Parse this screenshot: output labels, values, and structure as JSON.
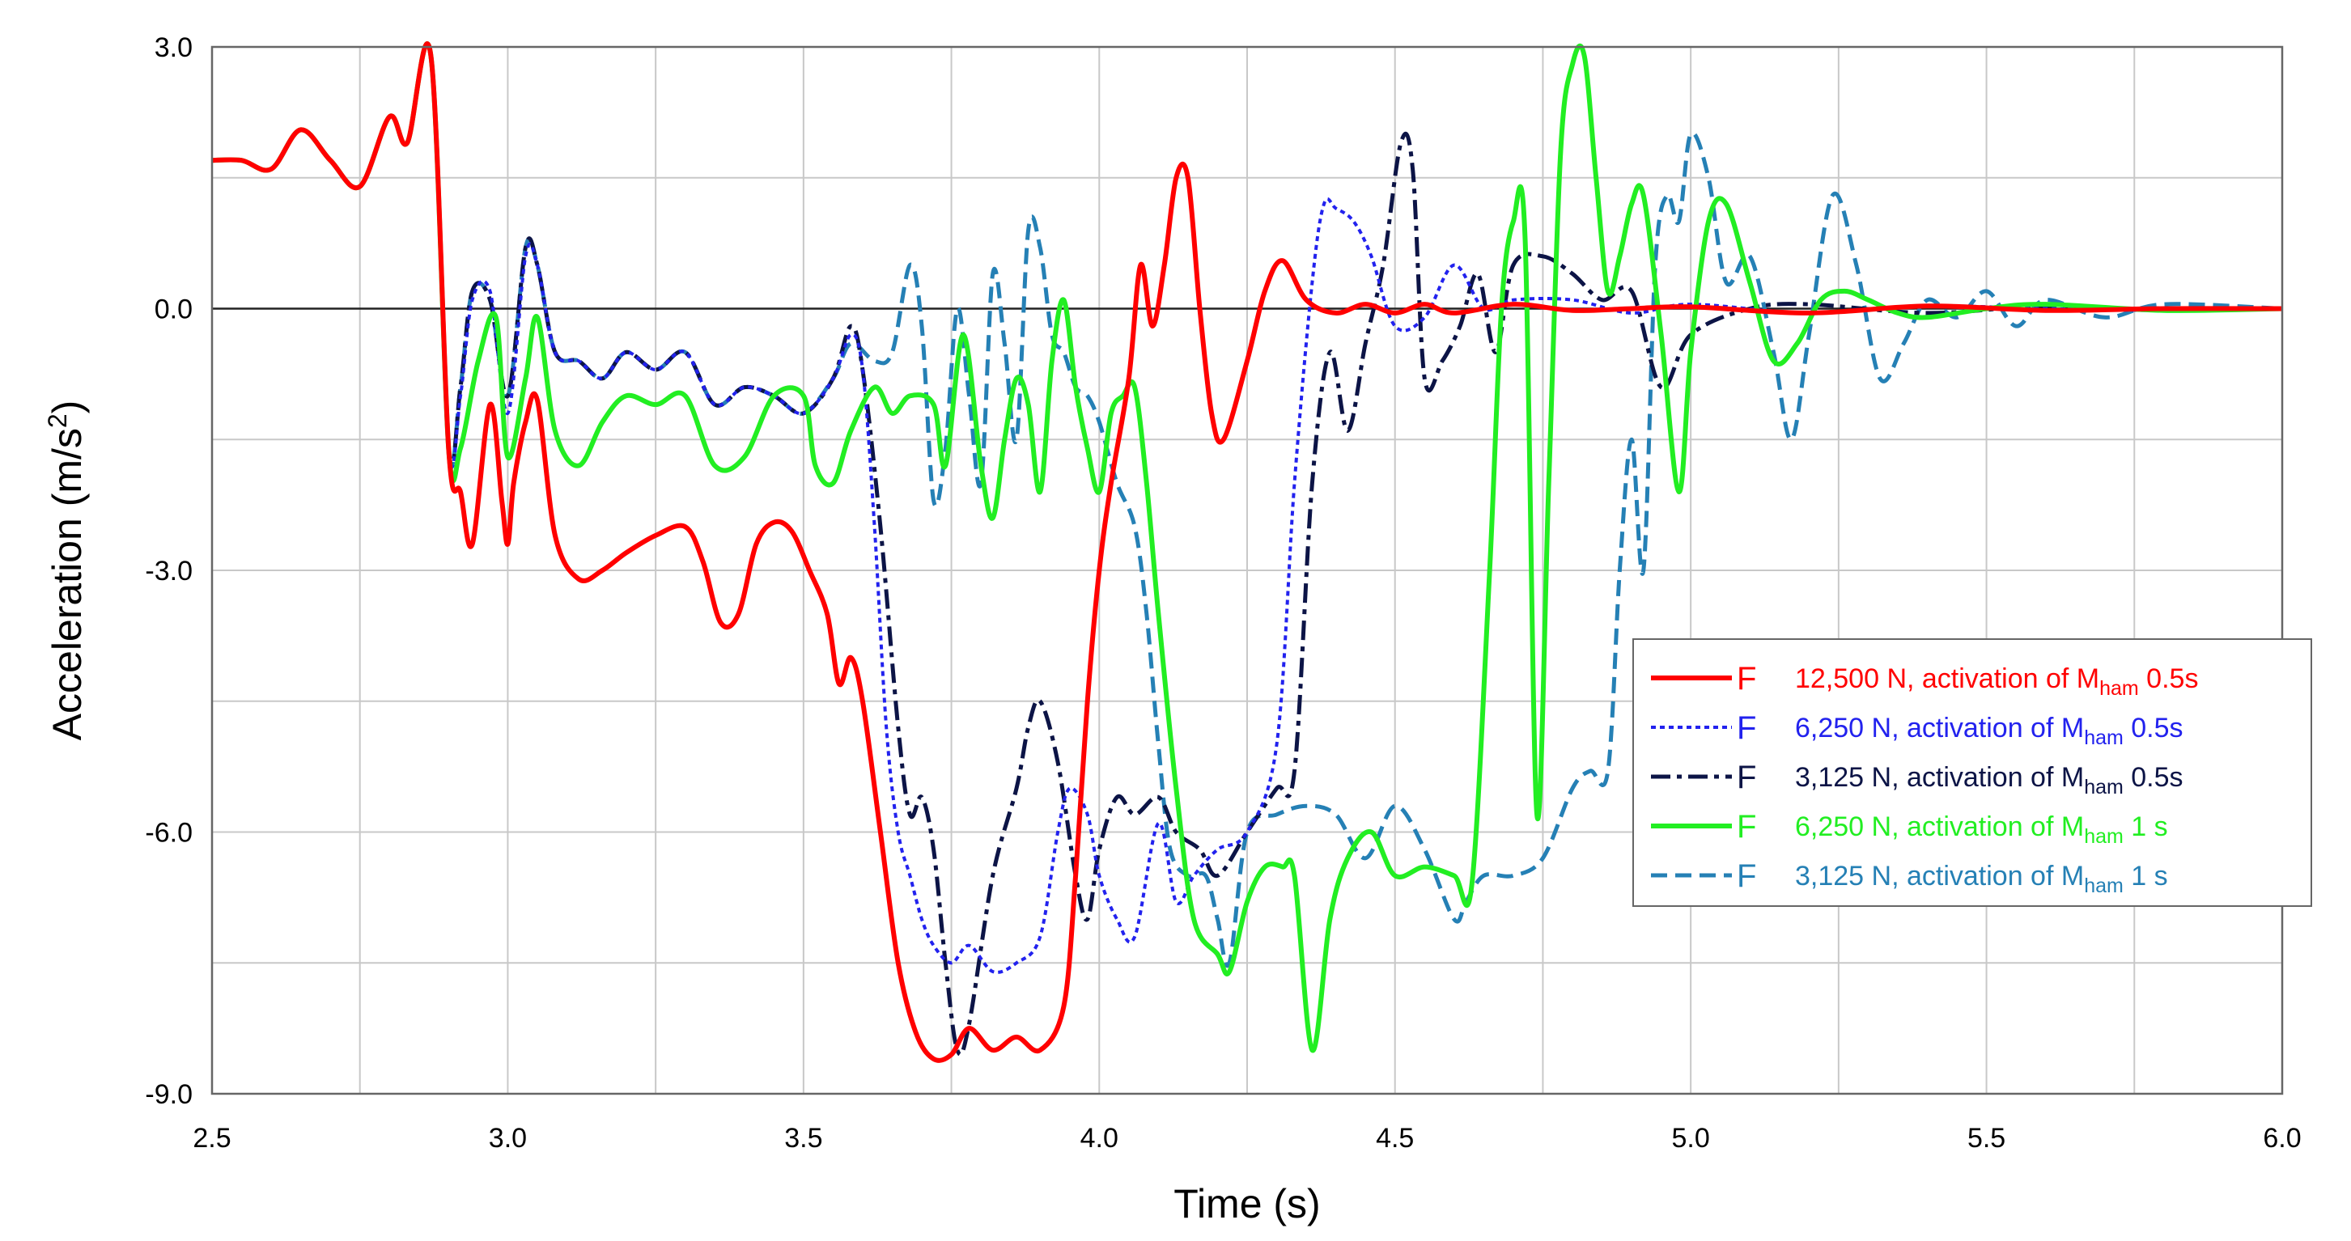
{
  "chart_data": {
    "type": "line",
    "title": "",
    "xlabel": "Time (s)",
    "ylabel_main": "Acceleration (m/s",
    "ylabel_sup": "2",
    "ylabel_close": ")",
    "xlim": [
      2.5,
      6.0
    ],
    "ylim": [
      -9.0,
      3.0
    ],
    "x_ticks": [
      2.5,
      3.0,
      3.5,
      4.0,
      4.5,
      5.0,
      5.5,
      6.0
    ],
    "x_tick_labels": [
      "2.5",
      "3.0",
      "3.5",
      "4.0",
      "4.5",
      "5.0",
      "5.5",
      "6.0"
    ],
    "y_ticks": [
      3.0,
      0.0,
      -3.0,
      -6.0,
      -9.0
    ],
    "y_tick_labels": [
      "3.0",
      "0.0",
      "-3.0",
      "-6.0",
      "-9.0"
    ],
    "grid": true,
    "legend_position": "right",
    "series": [
      {
        "name": "12,500 N, activation of Mham 0.5s",
        "legend_marker": "F",
        "legend_pre": "12,500 N, activation of M",
        "legend_sub": "ham",
        "legend_post": " 0.5s",
        "color": "#ff0000",
        "dash": "solid",
        "x": [
          2.5,
          2.55,
          2.6,
          2.65,
          2.7,
          2.75,
          2.8,
          2.83,
          2.87,
          2.9,
          2.92,
          2.94,
          2.97,
          2.99,
          3.0,
          3.01,
          3.03,
          3.05,
          3.08,
          3.12,
          3.16,
          3.2,
          3.25,
          3.3,
          3.33,
          3.36,
          3.39,
          3.42,
          3.45,
          3.48,
          3.51,
          3.54,
          3.56,
          3.58,
          3.6,
          3.63,
          3.66,
          3.69,
          3.72,
          3.75,
          3.78,
          3.82,
          3.86,
          3.9,
          3.94,
          3.96,
          3.98,
          4.0,
          4.02,
          4.05,
          4.07,
          4.09,
          4.11,
          4.13,
          4.15,
          4.17,
          4.19,
          4.21,
          4.25,
          4.28,
          4.31,
          4.35,
          4.4,
          4.45,
          4.5,
          4.55,
          4.6,
          4.7,
          4.8,
          4.9,
          5.0,
          5.2,
          5.4,
          5.6,
          5.8,
          6.0
        ],
        "y": [
          1.7,
          1.7,
          1.6,
          2.05,
          1.7,
          1.4,
          2.2,
          1.9,
          2.9,
          -1.6,
          -2.1,
          -2.7,
          -1.1,
          -2.2,
          -2.7,
          -2.0,
          -1.3,
          -1.05,
          -2.6,
          -3.1,
          -3.0,
          -2.8,
          -2.6,
          -2.5,
          -2.9,
          -3.6,
          -3.5,
          -2.7,
          -2.45,
          -2.55,
          -3.0,
          -3.5,
          -4.3,
          -4.0,
          -4.5,
          -6.0,
          -7.5,
          -8.3,
          -8.6,
          -8.55,
          -8.25,
          -8.5,
          -8.35,
          -8.5,
          -8.0,
          -6.5,
          -4.5,
          -3.0,
          -2.0,
          -0.8,
          0.5,
          -0.2,
          0.5,
          1.5,
          1.5,
          0.0,
          -1.2,
          -1.5,
          -0.6,
          0.2,
          0.55,
          0.1,
          -0.05,
          0.05,
          -0.05,
          0.05,
          -0.05,
          0.05,
          -0.02,
          0.0,
          0.02,
          -0.05,
          0.03,
          -0.02,
          0.0,
          0.0
        ]
      },
      {
        "name": "6,250 N, activation of Mham 0.5s",
        "legend_marker": "F",
        "legend_pre": "6,250 N, activation of M",
        "legend_sub": "ham",
        "legend_post": " 0.5s",
        "color": "#2222ee",
        "dash": "dot",
        "x": [
          2.5,
          2.55,
          2.6,
          2.65,
          2.7,
          2.75,
          2.8,
          2.83,
          2.87,
          2.9,
          2.92,
          2.94,
          2.97,
          3.0,
          3.03,
          3.05,
          3.08,
          3.12,
          3.16,
          3.2,
          3.25,
          3.3,
          3.35,
          3.4,
          3.45,
          3.5,
          3.55,
          3.58,
          3.6,
          3.62,
          3.64,
          3.66,
          3.68,
          3.7,
          3.72,
          3.75,
          3.78,
          3.82,
          3.86,
          3.9,
          3.93,
          3.95,
          3.98,
          4.0,
          4.03,
          4.06,
          4.1,
          4.13,
          4.16,
          4.2,
          4.25,
          4.3,
          4.33,
          4.36,
          4.38,
          4.4,
          4.43,
          4.46,
          4.5,
          4.55,
          4.6,
          4.65,
          4.7,
          4.8,
          4.9,
          5.0,
          5.2,
          5.4,
          5.6,
          5.8,
          6.0
        ],
        "y": [
          1.7,
          1.7,
          1.6,
          2.05,
          1.7,
          1.4,
          2.2,
          1.9,
          2.9,
          -1.6,
          -1.0,
          0.1,
          0.2,
          -1.2,
          0.6,
          0.5,
          -0.5,
          -0.6,
          -0.8,
          -0.5,
          -0.7,
          -0.5,
          -1.1,
          -0.9,
          -1.0,
          -1.2,
          -0.8,
          -0.3,
          -0.7,
          -2.5,
          -4.8,
          -6.0,
          -6.5,
          -7.0,
          -7.3,
          -7.5,
          -7.3,
          -7.6,
          -7.5,
          -7.2,
          -6.0,
          -5.5,
          -5.8,
          -6.5,
          -7.0,
          -7.2,
          -5.9,
          -6.8,
          -6.5,
          -6.2,
          -6.0,
          -5.0,
          -2.0,
          0.3,
          1.2,
          1.15,
          1.0,
          0.6,
          -0.2,
          -0.1,
          0.5,
          0.0,
          0.1,
          0.1,
          -0.05,
          0.05,
          -0.05,
          0.03,
          0.0,
          -0.02,
          0.0
        ]
      },
      {
        "name": "3,125 N, activation of Mham 0.5s",
        "legend_marker": "F",
        "legend_pre": "3,125 N, activation of M",
        "legend_sub": "ham",
        "legend_post": " 0.5s",
        "color": "#0c1446",
        "dash": "dashdot",
        "x": [
          2.5,
          2.55,
          2.6,
          2.65,
          2.7,
          2.75,
          2.8,
          2.83,
          2.87,
          2.9,
          2.92,
          2.94,
          2.97,
          3.0,
          3.03,
          3.05,
          3.08,
          3.12,
          3.16,
          3.2,
          3.25,
          3.3,
          3.35,
          3.4,
          3.45,
          3.5,
          3.55,
          3.58,
          3.6,
          3.63,
          3.66,
          3.68,
          3.7,
          3.72,
          3.74,
          3.76,
          3.78,
          3.82,
          3.86,
          3.88,
          3.9,
          3.93,
          3.96,
          3.98,
          4.0,
          4.03,
          4.06,
          4.1,
          4.13,
          4.17,
          4.2,
          4.25,
          4.3,
          4.33,
          4.36,
          4.39,
          4.42,
          4.45,
          4.48,
          4.51,
          4.53,
          4.55,
          4.58,
          4.61,
          4.64,
          4.67,
          4.7,
          4.75,
          4.8,
          4.85,
          4.9,
          4.95,
          5.0,
          5.1,
          5.2,
          5.4,
          5.6,
          5.8,
          6.0
        ],
        "y": [
          1.7,
          1.7,
          1.6,
          2.05,
          1.7,
          1.4,
          2.2,
          1.9,
          2.9,
          -1.6,
          -0.9,
          0.2,
          0.1,
          -1.0,
          0.7,
          0.5,
          -0.5,
          -0.6,
          -0.8,
          -0.5,
          -0.7,
          -0.5,
          -1.1,
          -0.9,
          -1.0,
          -1.2,
          -0.8,
          -0.2,
          -0.7,
          -2.5,
          -4.8,
          -5.8,
          -5.6,
          -6.2,
          -7.5,
          -8.5,
          -8.2,
          -6.5,
          -5.5,
          -4.8,
          -4.5,
          -5.2,
          -6.5,
          -7.0,
          -6.2,
          -5.6,
          -5.8,
          -5.6,
          -6.0,
          -6.2,
          -6.5,
          -6.0,
          -5.5,
          -5.3,
          -2.0,
          -0.5,
          -1.4,
          -0.4,
          0.5,
          1.9,
          1.6,
          -0.8,
          -0.6,
          -0.2,
          0.4,
          -0.5,
          0.5,
          0.6,
          0.4,
          0.1,
          0.2,
          -0.9,
          -0.3,
          0.0,
          0.05,
          -0.05,
          0.03,
          -0.02,
          0.0
        ]
      },
      {
        "name": "6,250 N, activation of Mham 1 s",
        "legend_marker": "F",
        "legend_pre": "6,250 N, activation of M",
        "legend_sub": "ham",
        "legend_post": "  1 s",
        "color": "#22ee22",
        "dash": "solid",
        "x": [
          2.5,
          2.55,
          2.6,
          2.65,
          2.7,
          2.75,
          2.8,
          2.83,
          2.87,
          2.9,
          2.92,
          2.95,
          2.98,
          3.0,
          3.03,
          3.05,
          3.08,
          3.12,
          3.16,
          3.2,
          3.25,
          3.3,
          3.35,
          3.4,
          3.45,
          3.5,
          3.52,
          3.55,
          3.58,
          3.62,
          3.65,
          3.68,
          3.72,
          3.74,
          3.77,
          3.8,
          3.82,
          3.84,
          3.86,
          3.88,
          3.9,
          3.92,
          3.94,
          3.96,
          3.98,
          4.0,
          4.02,
          4.04,
          4.06,
          4.08,
          4.1,
          4.13,
          4.16,
          4.2,
          4.22,
          4.25,
          4.28,
          4.31,
          4.33,
          4.36,
          4.39,
          4.42,
          4.46,
          4.5,
          4.55,
          4.6,
          4.63,
          4.66,
          4.68,
          4.7,
          4.72,
          4.74,
          4.76,
          4.78,
          4.8,
          4.82,
          4.84,
          4.86,
          4.88,
          4.9,
          4.92,
          4.95,
          4.98,
          5.0,
          5.03,
          5.06,
          5.1,
          5.14,
          5.18,
          5.22,
          5.26,
          5.3,
          5.35,
          5.4,
          5.5,
          5.6,
          5.8,
          6.0
        ],
        "y": [
          1.7,
          1.7,
          1.6,
          2.05,
          1.7,
          1.4,
          2.2,
          1.9,
          2.9,
          -1.6,
          -1.6,
          -0.6,
          -0.1,
          -1.7,
          -0.8,
          -0.1,
          -1.4,
          -1.8,
          -1.3,
          -1.0,
          -1.1,
          -1.0,
          -1.8,
          -1.7,
          -1.0,
          -1.0,
          -1.8,
          -2.0,
          -1.4,
          -0.9,
          -1.2,
          -1.0,
          -1.1,
          -1.8,
          -0.3,
          -1.8,
          -2.4,
          -1.5,
          -0.8,
          -1.1,
          -2.1,
          -0.6,
          0.1,
          -0.9,
          -1.6,
          -2.1,
          -1.2,
          -1.0,
          -0.9,
          -2.0,
          -3.5,
          -5.5,
          -7.0,
          -7.4,
          -7.6,
          -6.8,
          -6.4,
          -6.4,
          -6.5,
          -8.5,
          -7.0,
          -6.3,
          -6.0,
          -6.5,
          -6.4,
          -6.5,
          -6.6,
          -3.0,
          0.0,
          1.0,
          0.8,
          -5.8,
          -2.0,
          1.8,
          2.8,
          2.9,
          1.5,
          0.2,
          0.6,
          1.2,
          1.3,
          -0.3,
          -2.1,
          -0.5,
          1.0,
          1.2,
          0.3,
          -0.6,
          -0.4,
          0.1,
          0.2,
          0.1,
          -0.05,
          -0.1,
          0.0,
          0.05,
          -0.02,
          0.0
        ]
      },
      {
        "name": "3,125 N, activation of Mham 1 s",
        "legend_marker": "F",
        "legend_pre": "3,125 N, activation of M",
        "legend_sub": "ham",
        "legend_post": "  1 s",
        "color": "#2580b5",
        "dash": "dash",
        "x": [
          2.5,
          2.55,
          2.6,
          2.65,
          2.7,
          2.75,
          2.8,
          2.83,
          2.87,
          2.9,
          2.92,
          2.94,
          2.97,
          3.0,
          3.03,
          3.05,
          3.08,
          3.12,
          3.16,
          3.2,
          3.25,
          3.3,
          3.35,
          3.4,
          3.45,
          3.5,
          3.55,
          3.58,
          3.62,
          3.65,
          3.68,
          3.7,
          3.72,
          3.74,
          3.76,
          3.78,
          3.8,
          3.82,
          3.84,
          3.86,
          3.88,
          3.9,
          3.92,
          3.94,
          3.96,
          3.98,
          4.0,
          4.03,
          4.06,
          4.08,
          4.1,
          4.12,
          4.15,
          4.18,
          4.2,
          4.22,
          4.25,
          4.3,
          4.35,
          4.4,
          4.45,
          4.5,
          4.55,
          4.6,
          4.62,
          4.65,
          4.7,
          4.75,
          4.8,
          4.83,
          4.86,
          4.88,
          4.9,
          4.92,
          4.94,
          4.96,
          4.98,
          5.0,
          5.03,
          5.06,
          5.1,
          5.14,
          5.17,
          5.2,
          5.24,
          5.28,
          5.32,
          5.36,
          5.4,
          5.45,
          5.5,
          5.55,
          5.6,
          5.7,
          5.8,
          6.0
        ],
        "y": [
          1.7,
          1.7,
          1.6,
          2.05,
          1.7,
          1.4,
          2.2,
          1.9,
          2.9,
          -1.6,
          -0.9,
          0.2,
          0.1,
          -1.0,
          0.7,
          0.5,
          -0.5,
          -0.6,
          -0.8,
          -0.5,
          -0.7,
          -0.5,
          -1.1,
          -0.9,
          -1.0,
          -1.2,
          -0.8,
          -0.4,
          -0.6,
          -0.5,
          0.5,
          -0.2,
          -2.2,
          -1.6,
          0.0,
          -1.0,
          -2.0,
          0.4,
          -0.4,
          -1.5,
          0.9,
          0.7,
          -0.3,
          -0.5,
          -0.9,
          -1.0,
          -1.3,
          -2.0,
          -2.5,
          -3.5,
          -5.0,
          -6.2,
          -6.5,
          -6.5,
          -7.0,
          -7.5,
          -6.0,
          -5.8,
          -5.7,
          -5.8,
          -6.3,
          -5.7,
          -6.2,
          -7.0,
          -6.8,
          -6.5,
          -6.5,
          -6.3,
          -5.5,
          -5.3,
          -5.3,
          -3.0,
          -1.5,
          -3.0,
          0.5,
          1.3,
          1.0,
          2.0,
          1.5,
          0.3,
          0.6,
          -0.5,
          -1.5,
          -0.3,
          1.3,
          0.5,
          -0.8,
          -0.4,
          0.1,
          -0.1,
          0.2,
          -0.2,
          0.1,
          -0.1,
          0.05,
          0.0
        ]
      }
    ]
  }
}
